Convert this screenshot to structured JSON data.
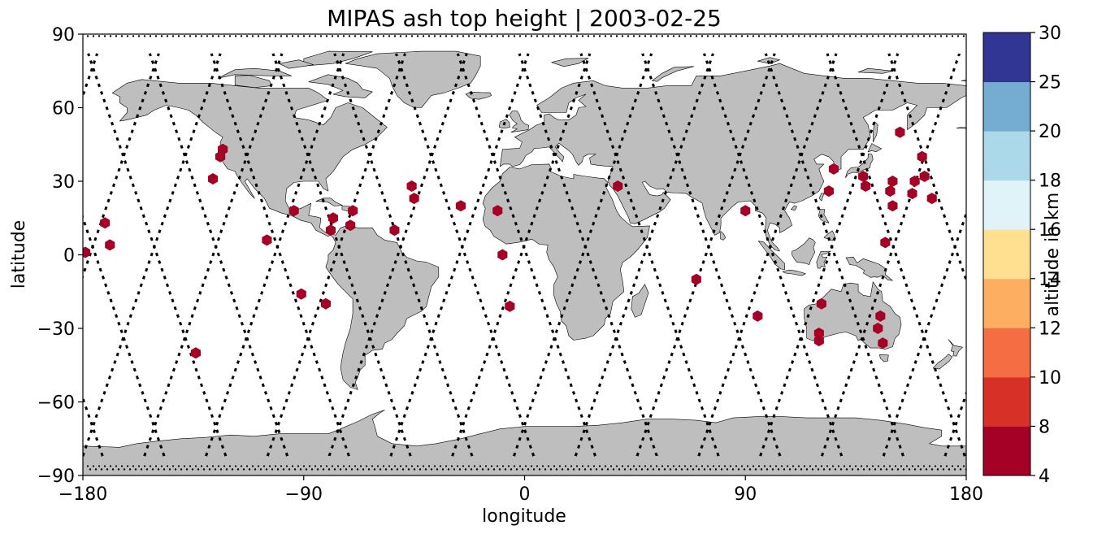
{
  "title": "MIPAS ash top height | 2003-02-25",
  "xlabel": "longitude",
  "ylabel": "latitude",
  "colorbar": {
    "label": "altitude in km",
    "ticks": [
      "4",
      "8",
      "10",
      "12",
      "14",
      "16",
      "18",
      "20",
      "25",
      "30"
    ],
    "colors": [
      "#a50026",
      "#d73027",
      "#f46d43",
      "#fdae61",
      "#fee090",
      "#ffffbf",
      "#e0f3f8",
      "#abd9e9",
      "#74add1",
      "#4575b4",
      "#313695"
    ]
  },
  "chart_data": {
    "type": "scatter",
    "projection": "plate-carree",
    "xlim": [
      -180,
      180
    ],
    "ylim": [
      -90,
      90
    ],
    "xticks": [
      "−180",
      "−90",
      "0",
      "90",
      "180"
    ],
    "yticks": [
      "−90",
      "−60",
      "−30",
      "0",
      "30",
      "60",
      "90"
    ],
    "colors": {
      "land": "#bebebe",
      "ocean": "#ffffff",
      "ash_marker": "#a50026",
      "orbit_track": "#000000"
    },
    "ash_detections": [
      {
        "lon": -179,
        "lat": 1
      },
      {
        "lon": -171,
        "lat": 13
      },
      {
        "lon": -169,
        "lat": 4
      },
      {
        "lon": -134,
        "lat": -40
      },
      {
        "lon": -127,
        "lat": 31
      },
      {
        "lon": -124,
        "lat": 40
      },
      {
        "lon": -123,
        "lat": 43
      },
      {
        "lon": -105,
        "lat": 6
      },
      {
        "lon": -94,
        "lat": 18
      },
      {
        "lon": -91,
        "lat": -16
      },
      {
        "lon": -81,
        "lat": -20
      },
      {
        "lon": -79,
        "lat": 10
      },
      {
        "lon": -78,
        "lat": 15
      },
      {
        "lon": -71,
        "lat": 12
      },
      {
        "lon": -70,
        "lat": 18
      },
      {
        "lon": -53,
        "lat": 10
      },
      {
        "lon": -46,
        "lat": 28
      },
      {
        "lon": -45,
        "lat": 23
      },
      {
        "lon": -26,
        "lat": 20
      },
      {
        "lon": -11,
        "lat": 18
      },
      {
        "lon": -9,
        "lat": 0
      },
      {
        "lon": -6,
        "lat": -21
      },
      {
        "lon": 38,
        "lat": 28
      },
      {
        "lon": 70,
        "lat": -10
      },
      {
        "lon": 90,
        "lat": 18
      },
      {
        "lon": 95,
        "lat": -25
      },
      {
        "lon": 120,
        "lat": -32
      },
      {
        "lon": 120,
        "lat": -35
      },
      {
        "lon": 121,
        "lat": -20
      },
      {
        "lon": 124,
        "lat": 26
      },
      {
        "lon": 126,
        "lat": 35
      },
      {
        "lon": 138,
        "lat": 32
      },
      {
        "lon": 139,
        "lat": 28
      },
      {
        "lon": 144,
        "lat": -30
      },
      {
        "lon": 145,
        "lat": -25
      },
      {
        "lon": 146,
        "lat": -36
      },
      {
        "lon": 147,
        "lat": 5
      },
      {
        "lon": 149,
        "lat": 26
      },
      {
        "lon": 150,
        "lat": 20
      },
      {
        "lon": 150,
        "lat": 30
      },
      {
        "lon": 153,
        "lat": 50
      },
      {
        "lon": 158,
        "lat": 25
      },
      {
        "lon": 159,
        "lat": 30
      },
      {
        "lon": 162,
        "lat": 40
      },
      {
        "lon": 163,
        "lat": 32
      },
      {
        "lon": 166,
        "lat": 23
      }
    ]
  }
}
